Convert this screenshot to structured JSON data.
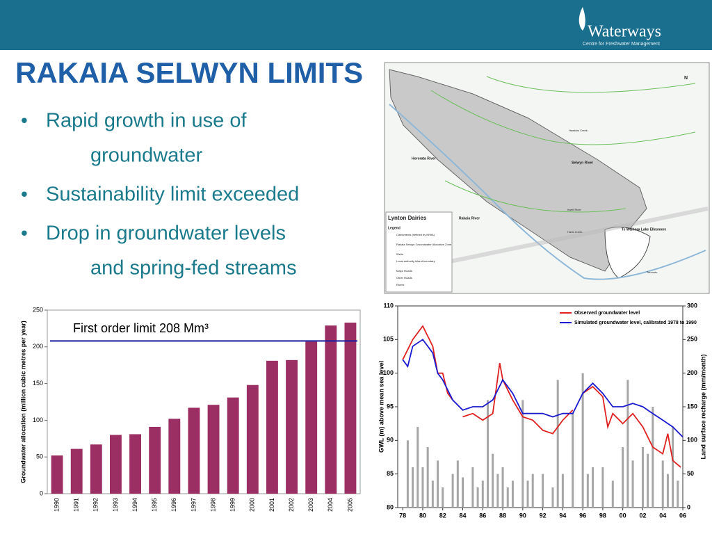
{
  "header": {
    "logo": "Waterways",
    "logo_sub": "Centre for Freshwater Management"
  },
  "title": "RAKAIA SELWYN LIMITS",
  "bullets": [
    [
      "Rapid growth in use of",
      "groundwater"
    ],
    [
      "Sustainability limit exceeded"
    ],
    [
      "Drop in groundwater levels",
      "and spring-fed streams"
    ]
  ],
  "map": {
    "labels": [
      "Lynton Dairies",
      "Legend",
      "Catchments (defined by NIWA)",
      "Rakaia Selwyn Groundwater Allocation Zone",
      "Wells",
      "Local authority inland boundary",
      "Major Roads",
      "Other Roads",
      "Rivers",
      "Hororata River",
      "Selwyn River",
      "Rakaia River",
      "Hawkins Creek",
      "Irwell River",
      "Harts Creek",
      "Te Waihora Lake Ellesmere",
      "Taumutu",
      "N"
    ]
  },
  "chart_data": [
    {
      "type": "bar",
      "ylabel": "Groundwater allocation (million cubic metres per year)",
      "categories": [
        "1990",
        "1991",
        "1992",
        "1993",
        "1994",
        "1995",
        "1996",
        "1997",
        "1998",
        "1999",
        "2000",
        "2001",
        "2002",
        "2003",
        "2004",
        "2005"
      ],
      "values": [
        52,
        61,
        67,
        80,
        81,
        91,
        102,
        117,
        121,
        131,
        148,
        181,
        182,
        207,
        229,
        233
      ],
      "color": "#9b2f63",
      "ylim": [
        0,
        250
      ],
      "yticks": [
        0,
        50,
        100,
        150,
        200,
        250
      ],
      "grid": false,
      "limit": 208,
      "limit_color": "#1a1a9c",
      "annotation": "First order limit 208 Mm³"
    },
    {
      "type": "line",
      "ylabel": "GWL (m) above mean sea level",
      "y2label": "Land surface recharge (mm/month)",
      "xlim": [
        1977.5,
        2006
      ],
      "ylim": [
        80,
        110
      ],
      "y2lim": [
        0,
        300
      ],
      "xticks": [
        {
          "value": 1978,
          "label": "78"
        },
        {
          "value": 1980,
          "label": "80"
        },
        {
          "value": 1982,
          "label": "82"
        },
        {
          "value": 1984,
          "label": "84"
        },
        {
          "value": 1986,
          "label": "86"
        },
        {
          "value": 1988,
          "label": "88"
        },
        {
          "value": 1990,
          "label": "90"
        },
        {
          "value": 1992,
          "label": "92"
        },
        {
          "value": 1994,
          "label": "94"
        },
        {
          "value": 1996,
          "label": "96"
        },
        {
          "value": 1998,
          "label": "98"
        },
        {
          "value": 2000,
          "label": "00"
        },
        {
          "value": 2002,
          "label": "02"
        },
        {
          "value": 2004,
          "label": "04"
        },
        {
          "value": 2006,
          "label": "06"
        }
      ],
      "yticks": [
        80,
        85,
        90,
        95,
        100,
        105,
        110
      ],
      "y2ticks": [
        0,
        50,
        100,
        150,
        200,
        250,
        300
      ],
      "series": [
        {
          "type": "bar",
          "axis": "y2",
          "color": "#a6a6a6",
          "x": [
            1978.5,
            1979,
            1979.5,
            1980,
            1980.5,
            1981,
            1981.5,
            1982,
            1983,
            1983.5,
            1984,
            1985,
            1985.5,
            1986,
            1986.5,
            1987,
            1987.5,
            1988,
            1988.5,
            1989,
            1990,
            1990.5,
            1991,
            1992,
            1993,
            1993.5,
            1994,
            1995,
            1996,
            1996.5,
            1997,
            1998,
            1999,
            2000,
            2000.5,
            2001,
            2002,
            2002.5,
            2003,
            2004,
            2004.5,
            2005,
            2005.5
          ],
          "values": [
            100,
            60,
            120,
            60,
            90,
            40,
            70,
            30,
            50,
            70,
            45,
            60,
            30,
            40,
            160,
            80,
            50,
            60,
            30,
            40,
            160,
            40,
            50,
            50,
            30,
            190,
            50,
            140,
            200,
            50,
            60,
            60,
            40,
            90,
            190,
            70,
            90,
            80,
            150,
            70,
            50,
            120,
            40
          ]
        },
        {
          "name": "Observed groundwater level",
          "color": "#e02020",
          "x": [
            1978,
            1979,
            1980,
            1981,
            1981.5,
            1982,
            1982.5,
            1983,
            1983.5,
            1984,
            1985,
            1986,
            1987,
            1987.7,
            1988,
            1989,
            1990,
            1991,
            1992,
            1993,
            1994,
            1995,
            1995.5,
            1996,
            1997,
            1998,
            1998.5,
            1999,
            2000,
            2001,
            2002,
            2003,
            2004,
            2004.5,
            2005,
            2005.8
          ],
          "values": [
            102,
            105,
            107,
            104,
            100,
            100,
            97,
            96,
            null,
            93.5,
            94,
            93,
            94,
            101.5,
            99,
            96,
            93.5,
            93,
            91.5,
            91,
            93,
            94.5,
            null,
            97,
            98,
            96.5,
            92,
            94,
            92.5,
            94,
            92,
            89,
            88,
            91,
            87,
            86
          ]
        },
        {
          "name": "Simulated groundwater level, calibrated 1978 to 1990",
          "color": "#1a1ad0",
          "x": [
            1978,
            1978.5,
            1979,
            1980,
            1981,
            1981.5,
            1982,
            1983,
            1984,
            1985,
            1986,
            1987,
            1988,
            1989,
            1990,
            1991,
            1992,
            1993,
            1994,
            1995,
            1996,
            1997,
            1998,
            1999,
            2000,
            2001,
            2002,
            2003,
            2004,
            2005,
            2006
          ],
          "values": [
            102,
            101,
            104,
            105,
            103,
            100,
            99,
            96,
            94.5,
            95,
            95,
            96,
            99,
            97,
            94,
            94,
            94,
            93.5,
            94,
            94,
            97,
            98.5,
            97,
            95,
            95,
            95.5,
            95,
            94,
            93,
            92,
            90.5
          ]
        }
      ]
    }
  ]
}
